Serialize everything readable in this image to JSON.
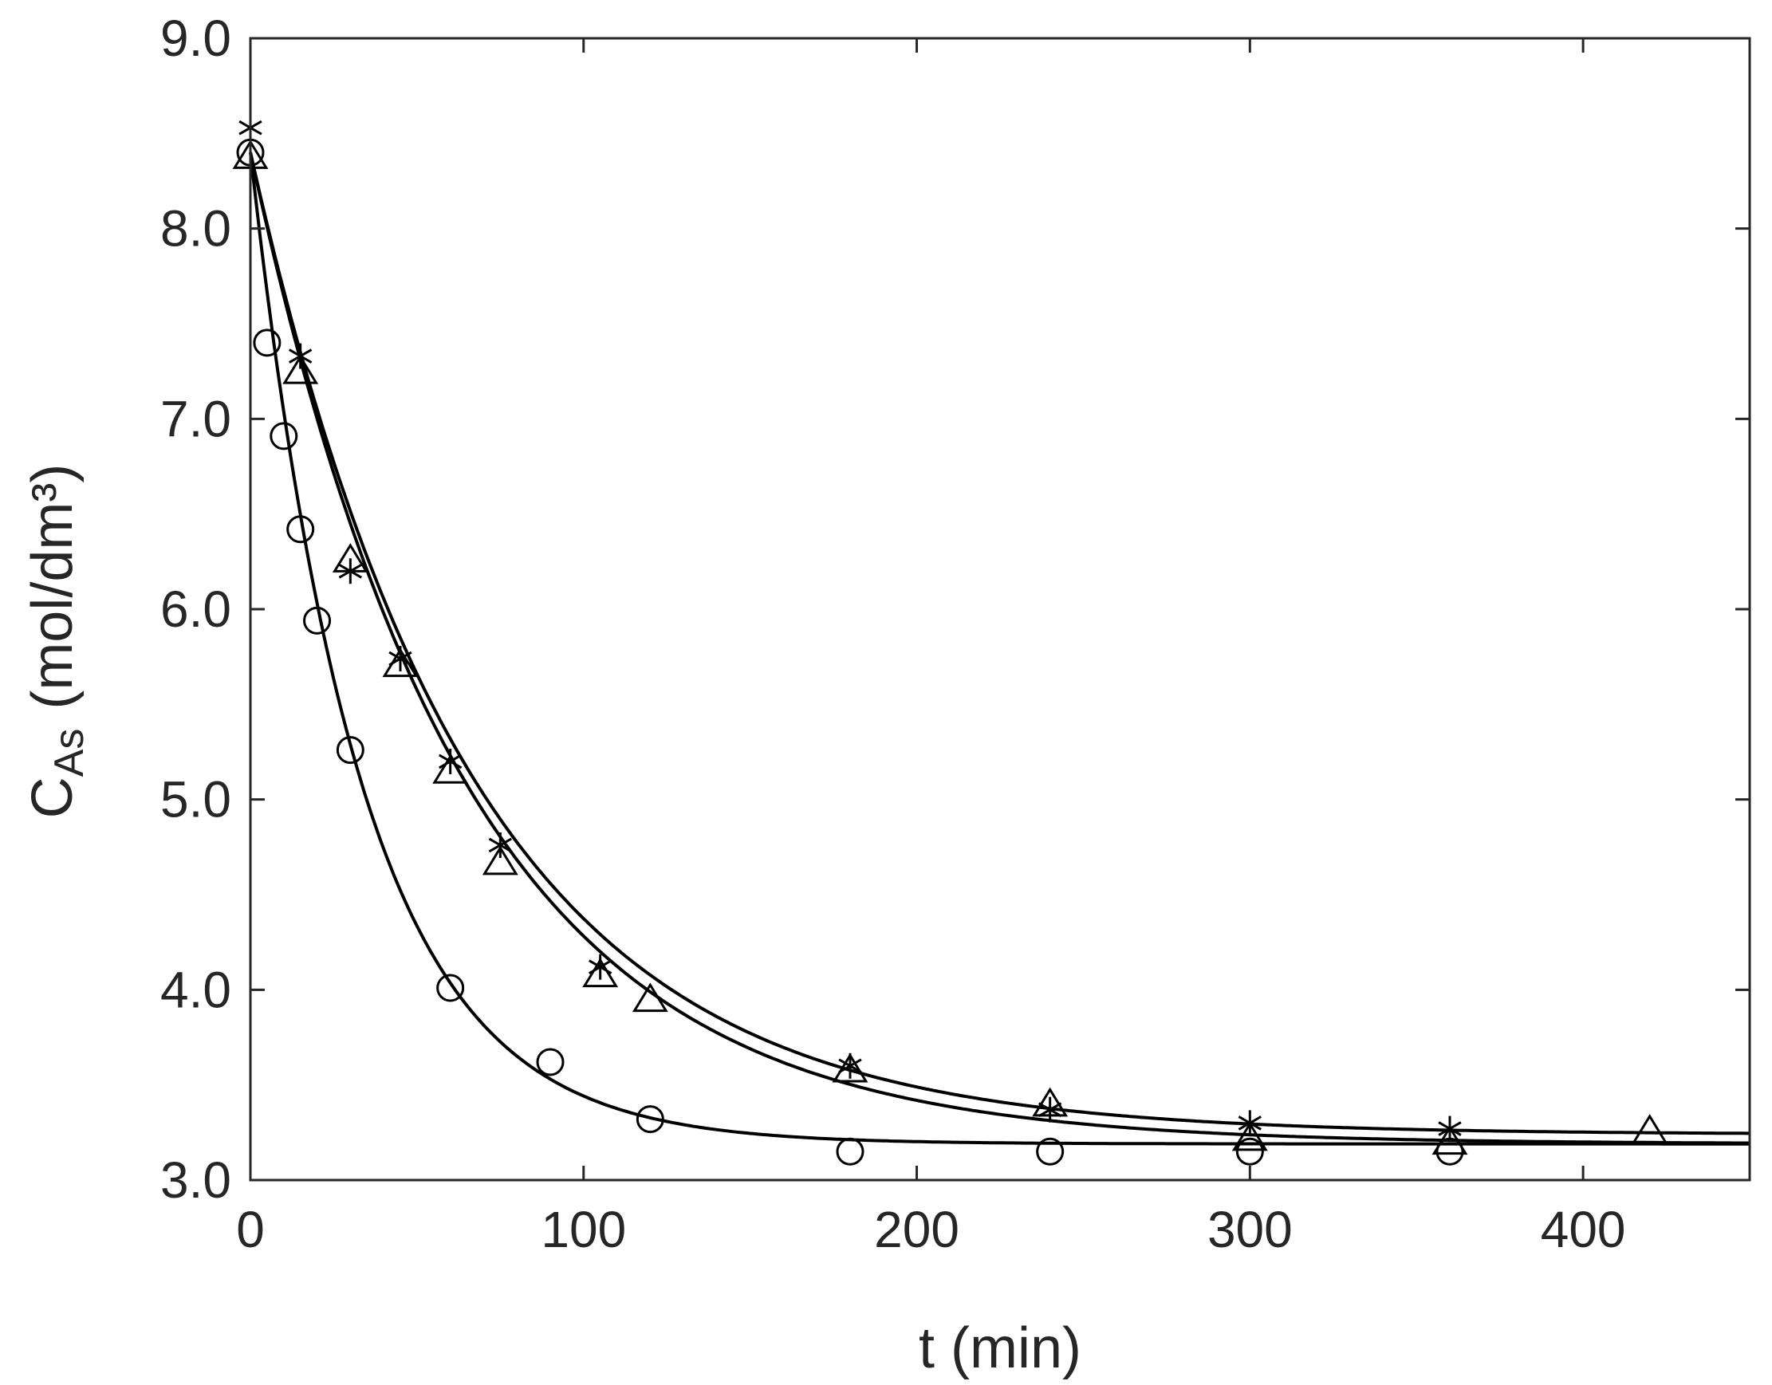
{
  "chart_data": {
    "type": "scatter",
    "xlabel": "t (min)",
    "ylabel": {
      "main": "C",
      "subscript": "As",
      "unit": "(mol/dm³)"
    },
    "xlim": [
      0,
      450
    ],
    "ylim": [
      3.0,
      9.0
    ],
    "x_ticks": [
      0,
      100,
      200,
      300,
      400
    ],
    "x_tick_labels": [
      "0",
      "100",
      "200",
      "300",
      "400"
    ],
    "y_ticks": [
      3,
      4,
      5,
      6,
      7,
      8,
      9
    ],
    "y_tick_labels": [
      "3.0",
      "4.0",
      "5.0",
      "6.0",
      "7.0",
      "8.0",
      "9.0"
    ],
    "grid": false,
    "box": true,
    "line_color": "#000000",
    "series": [
      {
        "marker": "circle",
        "points": [
          {
            "x": 0,
            "y": 8.4
          },
          {
            "x": 5,
            "y": 7.4
          },
          {
            "x": 10,
            "y": 6.91
          },
          {
            "x": 15,
            "y": 6.42
          },
          {
            "x": 20,
            "y": 5.94
          },
          {
            "x": 30,
            "y": 5.26
          },
          {
            "x": 60,
            "y": 4.01
          },
          {
            "x": 90,
            "y": 3.62
          },
          {
            "x": 120,
            "y": 3.32
          },
          {
            "x": 180,
            "y": 3.15
          },
          {
            "x": 240,
            "y": 3.15
          },
          {
            "x": 300,
            "y": 3.15
          },
          {
            "x": 360,
            "y": 3.15
          }
        ],
        "fit": {
          "type": "exponential",
          "y0": 8.4,
          "y_inf": 3.19,
          "tau": 33
        }
      },
      {
        "marker": "triangle",
        "points": [
          {
            "x": 0,
            "y": 8.38
          },
          {
            "x": 15,
            "y": 7.25
          },
          {
            "x": 30,
            "y": 6.26
          },
          {
            "x": 45,
            "y": 5.71
          },
          {
            "x": 60,
            "y": 5.15
          },
          {
            "x": 75,
            "y": 4.67
          },
          {
            "x": 105,
            "y": 4.08
          },
          {
            "x": 120,
            "y": 3.95
          },
          {
            "x": 180,
            "y": 3.58
          },
          {
            "x": 240,
            "y": 3.4
          },
          {
            "x": 300,
            "y": 3.22
          },
          {
            "x": 360,
            "y": 3.2
          },
          {
            "x": 420,
            "y": 3.26
          }
        ],
        "fit": {
          "type": "exponential",
          "y0": 8.4,
          "y_inf": 3.19,
          "tau": 64
        }
      },
      {
        "marker": "asterisk",
        "points": [
          {
            "x": 0,
            "y": 8.53
          },
          {
            "x": 15,
            "y": 7.33
          },
          {
            "x": 30,
            "y": 6.2
          },
          {
            "x": 45,
            "y": 5.74
          },
          {
            "x": 60,
            "y": 5.2
          },
          {
            "x": 75,
            "y": 4.76
          },
          {
            "x": 105,
            "y": 4.12
          },
          {
            "x": 180,
            "y": 3.6
          },
          {
            "x": 240,
            "y": 3.37
          },
          {
            "x": 300,
            "y": 3.3
          },
          {
            "x": 360,
            "y": 3.27
          }
        ],
        "fit": {
          "type": "exponential",
          "y0": 8.4,
          "y_inf": 3.24,
          "tau": 66
        }
      }
    ]
  }
}
